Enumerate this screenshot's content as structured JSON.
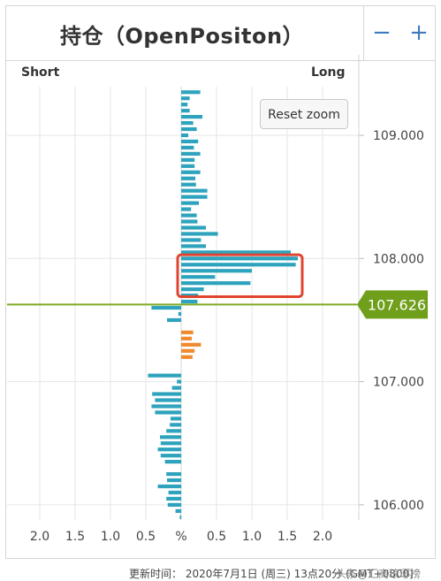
{
  "header": {
    "title": "持仓（OpenPositon）",
    "zoom_out_icon": "minus-icon",
    "zoom_in_icon": "plus-icon"
  },
  "side_labels": {
    "short": "Short",
    "long": "Long"
  },
  "reset_zoom_label": "Reset zoom",
  "colors": {
    "long_bar": "#2ea3bd",
    "short_bar": "#2ea3bd",
    "short_bar_near_price": "#f08a2e",
    "price_line": "#7dab23",
    "price_badge": "#6f9f1b",
    "highlight_box": "#e0442f",
    "axis_text": "#444444",
    "grid": "#e6e6e6"
  },
  "chart_data": {
    "type": "bar",
    "orientation": "horizontal",
    "title": "持仓（OpenPositon）",
    "xlabel": "%",
    "x_axis_ticks": [
      "2.0",
      "1.5",
      "1.0",
      "0.5",
      "%",
      "0.5",
      "1.0",
      "1.5",
      "2.0"
    ],
    "xlim": [
      -2.5,
      2.5
    ],
    "y_axis_ticks": [
      "109.000",
      "108.000",
      "107.000",
      "106.000"
    ],
    "ylim": [
      105.95,
      109.35
    ],
    "current_price": "107.626",
    "long_label": "Long",
    "short_label": "Short",
    "grid": true,
    "series": [
      {
        "name": "Long",
        "price_step": 0.05,
        "price_start": 107.65,
        "values": [
          0.23,
          0.24,
          0.32,
          0.98,
          0.48,
          1.0,
          1.62,
          1.65,
          1.55,
          0.35,
          0.28,
          0.52,
          0.35,
          0.23,
          0.22,
          0.14,
          0.25,
          0.37,
          0.37,
          0.21,
          0.2,
          0.27,
          0.19,
          0.19,
          0.27,
          0.18,
          0.24,
          0.1,
          0.22,
          0.17,
          0.3,
          0.12,
          0.09,
          0.12,
          0.27
        ]
      },
      {
        "name": "Short",
        "price_step": 0.05,
        "price_start": 107.6,
        "values": [
          0.42,
          0.04,
          0.2,
          0.0,
          -0.17,
          -0.15,
          -0.28,
          -0.19,
          -0.16,
          0.0,
          0.0,
          0.47,
          0.06,
          0.13,
          0.41,
          0.37,
          0.42,
          0.37,
          0.15,
          0.16,
          0.21,
          0.3,
          0.29,
          0.33,
          0.29,
          0.23,
          0.0,
          0.21,
          0.2,
          0.33,
          0.18,
          0.21,
          0.19,
          0.08,
          0.02
        ]
      }
    ]
  },
  "footer": {
    "updated": "更新时间： 2020年7月1日 (周三) 13点20分 (GMT+0800)",
    "watermark": "头条@汇商琅琊榜"
  }
}
